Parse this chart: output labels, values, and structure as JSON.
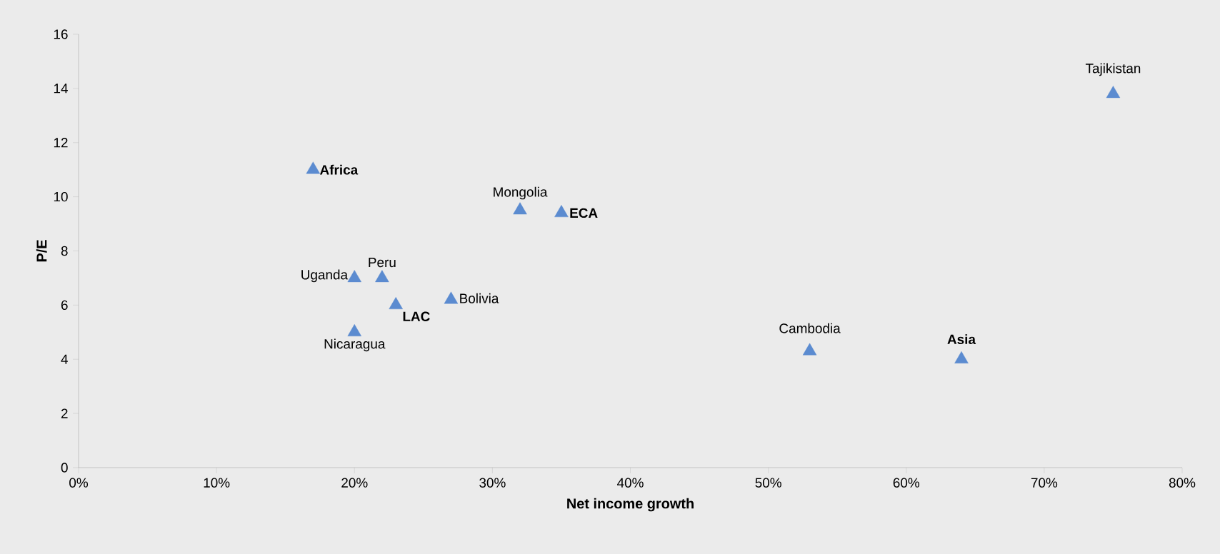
{
  "chart_data": {
    "type": "scatter",
    "xlabel": "Net income growth",
    "ylabel": "P/E",
    "x": [
      17,
      20,
      22,
      23,
      20,
      27,
      32,
      35,
      53,
      64,
      75
    ],
    "values": [
      11,
      7,
      7,
      6,
      5,
      6.2,
      9.5,
      9.4,
      4.3,
      4,
      13.8
    ],
    "color": "#5b8bd0",
    "marker": "triangle",
    "xlim": [
      0,
      80
    ],
    "xticks": [
      {
        "value": 0,
        "label": "0%"
      },
      {
        "value": 10,
        "label": "10%"
      },
      {
        "value": 20,
        "label": "20%"
      },
      {
        "value": 30,
        "label": "30%"
      },
      {
        "value": 40,
        "label": "40%"
      },
      {
        "value": 50,
        "label": "50%"
      },
      {
        "value": 60,
        "label": "60%"
      },
      {
        "value": 70,
        "label": "70%"
      },
      {
        "value": 80,
        "label": "80%"
      }
    ],
    "ylim": [
      0,
      16
    ],
    "yticks": [
      0,
      2,
      4,
      6,
      8,
      10,
      12,
      14,
      16
    ],
    "annotations": [
      {
        "text": "**Africa**",
        "x": 17,
        "y": 11
      },
      {
        "text": "Uganda",
        "x": 20,
        "y": 7
      },
      {
        "text": "Peru",
        "x": 22,
        "y": 7
      },
      {
        "text": "**LAC**",
        "x": 23,
        "y": 6
      },
      {
        "text": "Nicaragua",
        "x": 20,
        "y": 5
      },
      {
        "text": "Bolivia",
        "x": 27,
        "y": 6.2
      },
      {
        "text": "Mongolia",
        "x": 32,
        "y": 9.5
      },
      {
        "text": "**ECA**",
        "x": 35,
        "y": 9.4
      },
      {
        "text": "Cambodia",
        "x": 53,
        "y": 4.3
      },
      {
        "text": "**Asia**",
        "x": 64,
        "y": 4
      },
      {
        "text": "Tajikistan",
        "x": 75,
        "y": 13.8
      }
    ]
  }
}
